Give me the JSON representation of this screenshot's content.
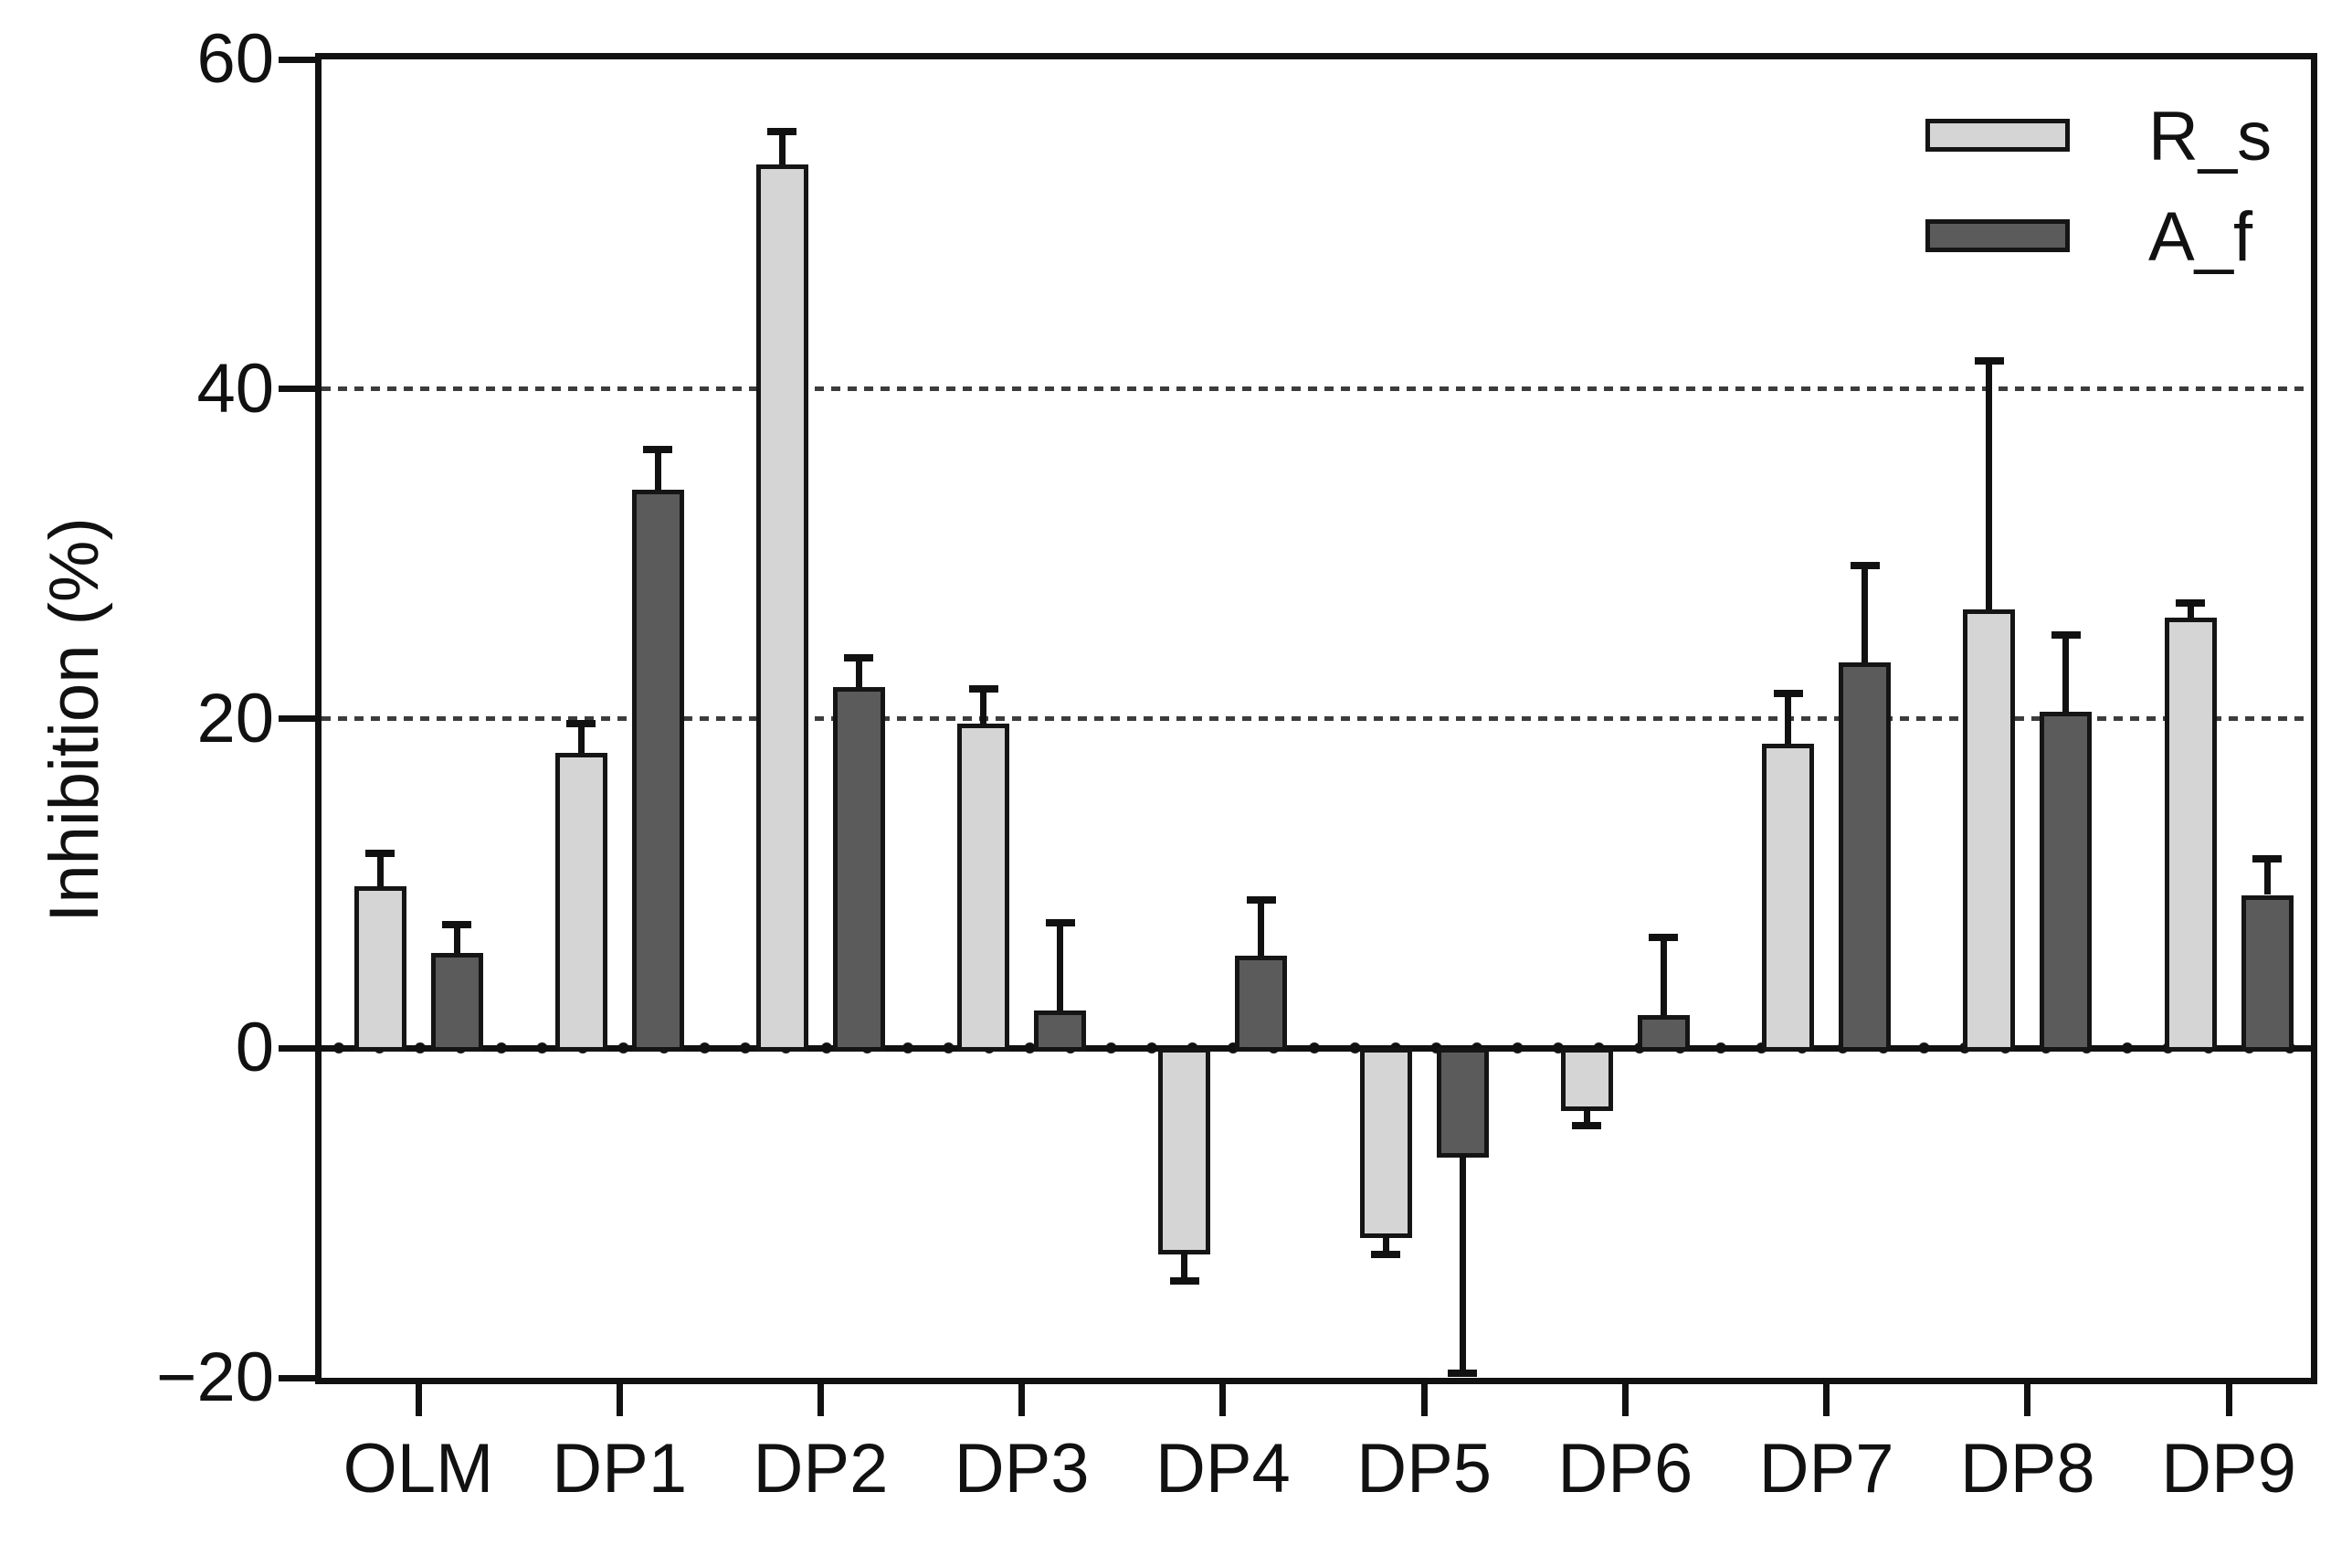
{
  "chart_data": {
    "type": "bar",
    "title": "",
    "xlabel": "",
    "ylabel": "Inhibition (%)",
    "ylim": [
      -20,
      60
    ],
    "yticks": [
      {
        "value": 60,
        "label": "60"
      },
      {
        "value": 40,
        "label": "40"
      },
      {
        "value": 20,
        "label": "20"
      },
      {
        "value": 0,
        "label": "0"
      },
      {
        "value": -20,
        "label": "−20"
      }
    ],
    "gridlines": [
      40,
      20
    ],
    "grid_style": "dashed",
    "legend_position": "top-right-inside",
    "categories": [
      "OLM",
      "DP1",
      "DP2",
      "DP3",
      "DP4",
      "DP5",
      "DP6",
      "DP7",
      "DP8",
      "DP9"
    ],
    "series": [
      {
        "name": "R_s",
        "color": "#d5d5d5",
        "values": [
          9.8,
          17.9,
          53.6,
          19.7,
          -12.3,
          -11.3,
          -3.6,
          18.5,
          26.6,
          26.1
        ],
        "errors": [
          2.0,
          1.8,
          2.0,
          2.1,
          1.8,
          1.2,
          1.1,
          3.0,
          15.1,
          0.9
        ]
      },
      {
        "name": "A_f",
        "color": "#5b5b5b",
        "values": [
          5.8,
          33.9,
          21.9,
          2.3,
          5.6,
          -6.4,
          2.0,
          23.4,
          20.4,
          9.3
        ],
        "errors": [
          1.7,
          2.4,
          1.8,
          5.3,
          3.4,
          13.3,
          4.7,
          5.9,
          4.7,
          2.2
        ]
      }
    ]
  }
}
